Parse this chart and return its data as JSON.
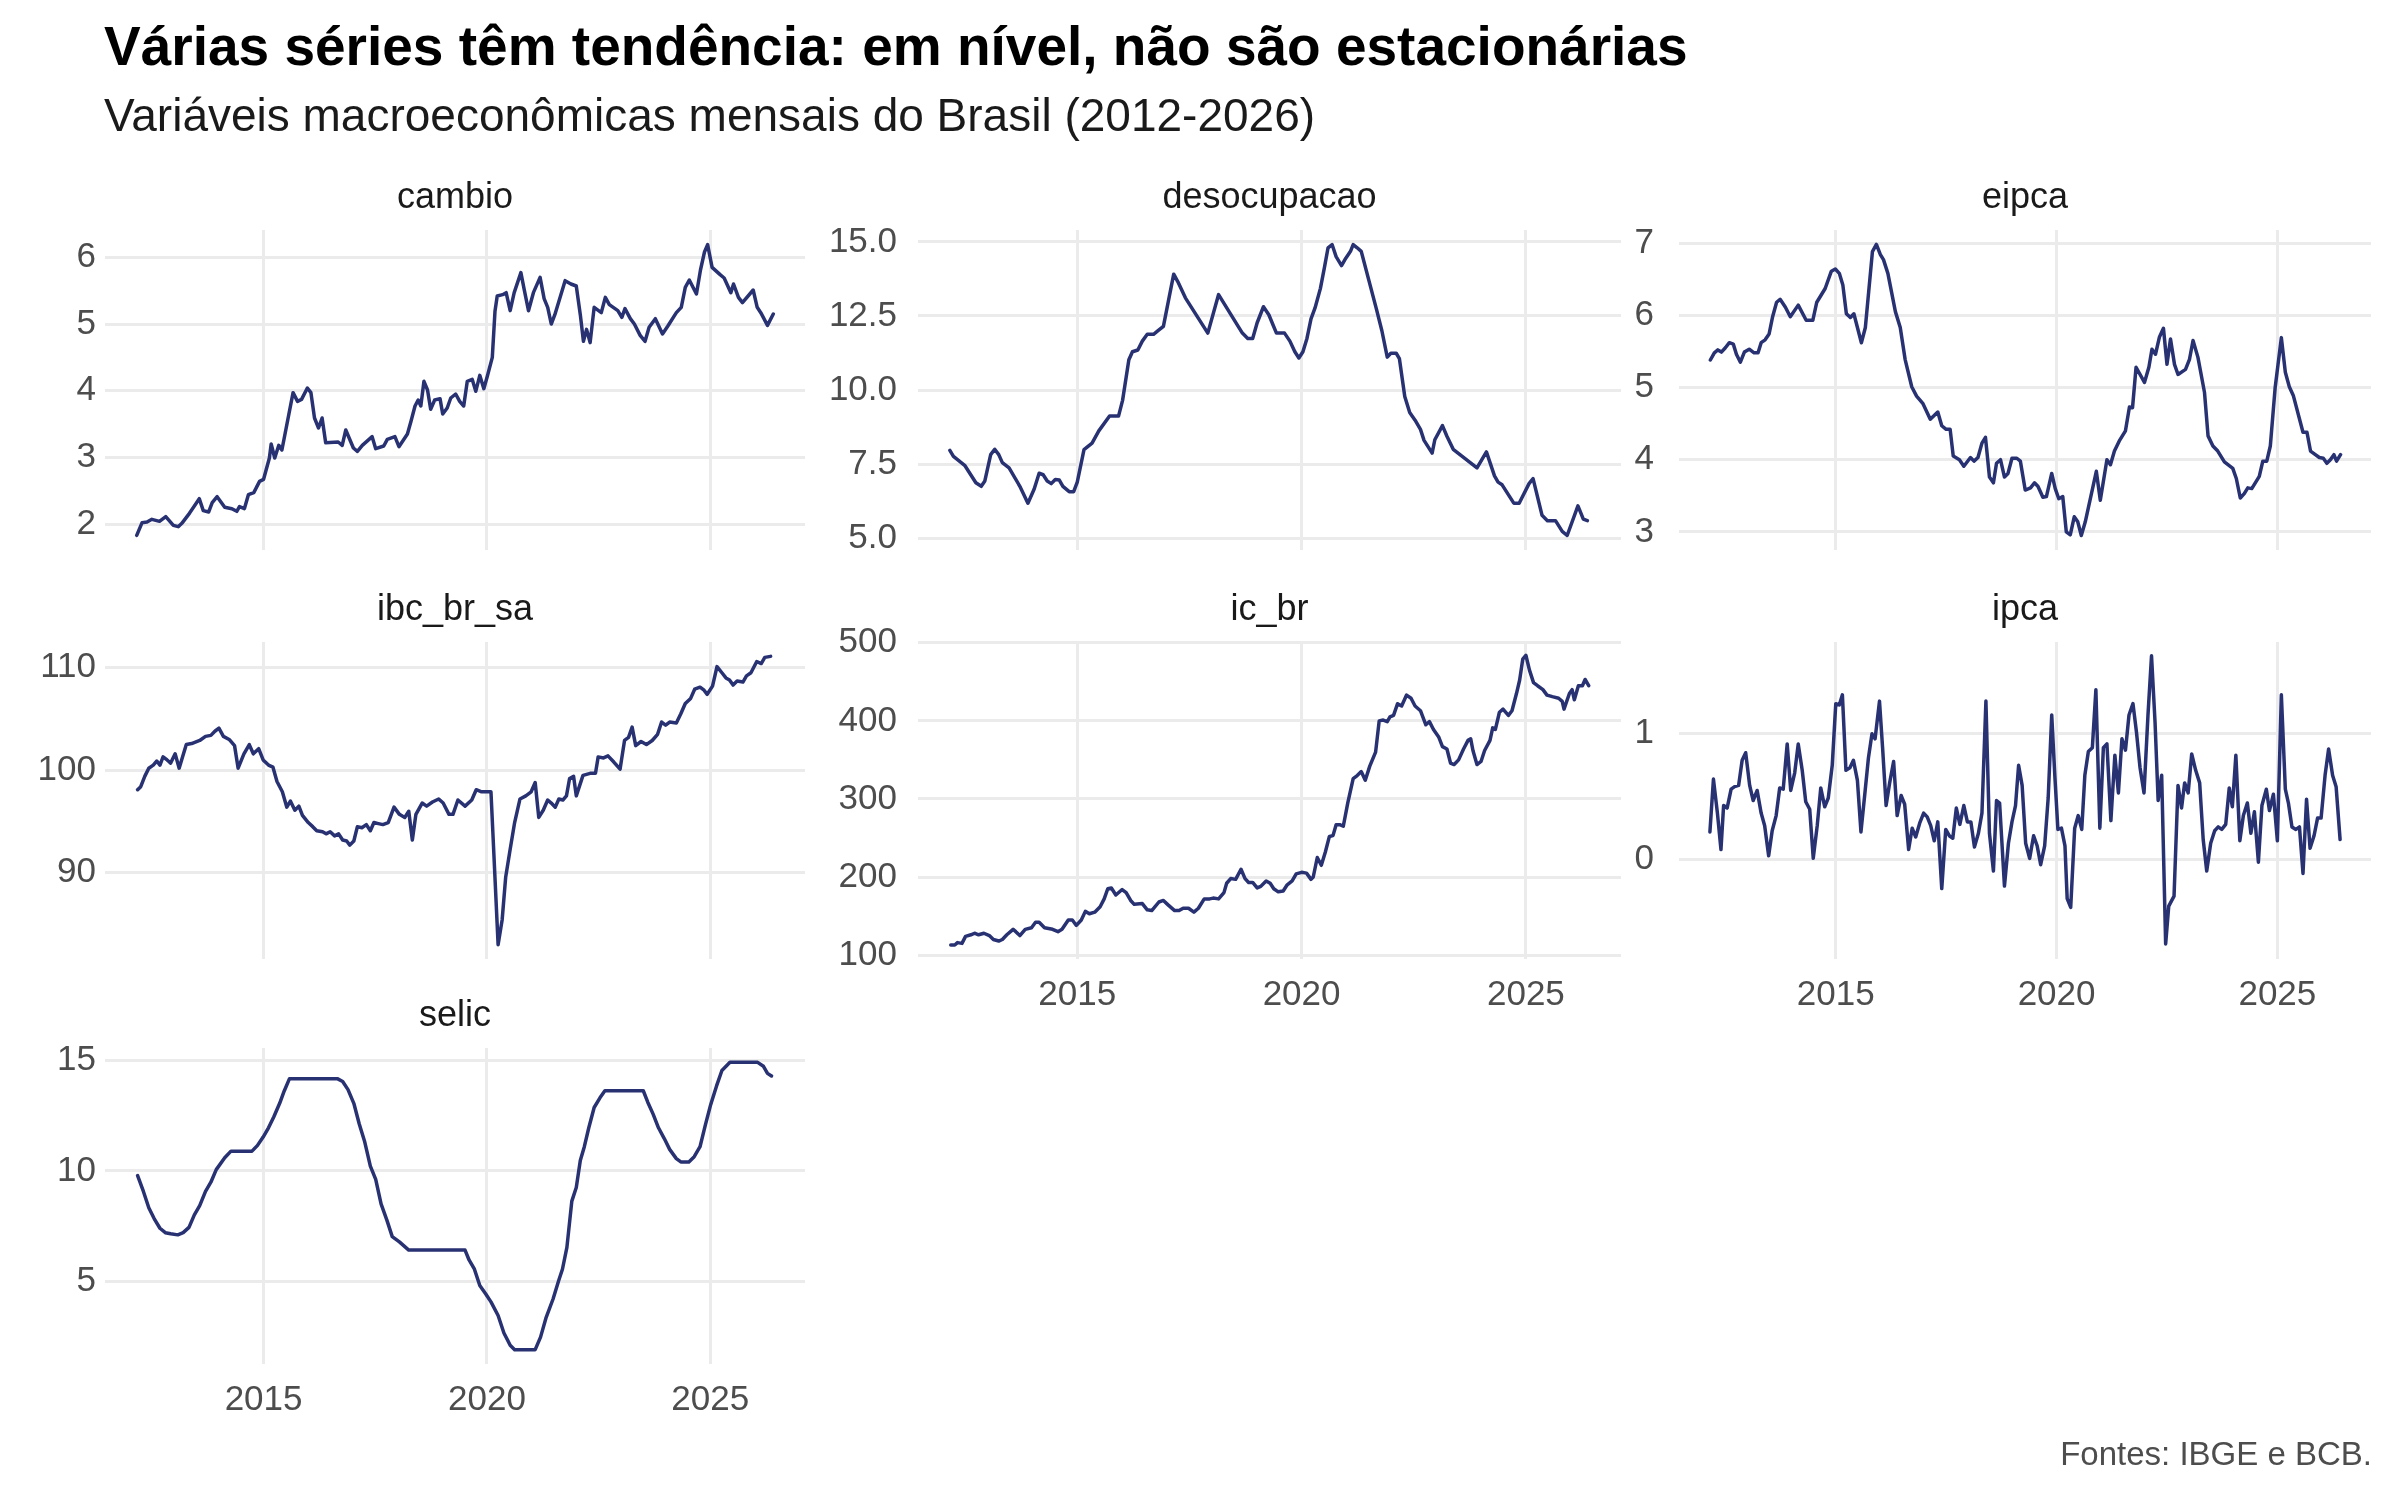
{
  "chart_data": [
    {
      "type": "other",
      "title": "Várias séries têm tendência: em nível, não são estacionárias",
      "subtitle": "Variáveis macroeconômicas mensais do Brasil (2012-2026)",
      "annotations": [
        "Fontes: IBGE e BCB."
      ]
    },
    {
      "type": "line",
      "title": "cambio",
      "color": "#283273",
      "grid": true,
      "tick_labels": "y",
      "xlim": [
        2011.45,
        2027.12
      ],
      "xticks": [
        2015,
        2020,
        2025
      ],
      "ylim": [
        1.61,
        6.41
      ],
      "yticks": [
        2,
        3,
        4,
        5,
        6
      ],
      "x": [
        2012.16,
        2012.28,
        2012.39,
        2012.5,
        2012.67,
        2012.81,
        2012.98,
        2013.09,
        2013.17,
        2013.34,
        2013.56,
        2013.65,
        2013.77,
        2013.85,
        2013.96,
        2014.13,
        2014.29,
        2014.4,
        2014.46,
        2014.57,
        2014.66,
        2014.78,
        2014.91,
        2015,
        2015.13,
        2015.17,
        2015.25,
        2015.34,
        2015.41,
        2015.66,
        2015.76,
        2015.85,
        2015.98,
        2016.06,
        2016.14,
        2016.23,
        2016.31,
        2016.39,
        2016.67,
        2016.76,
        2016.84,
        2017.01,
        2017.1,
        2017.21,
        2017.43,
        2017.51,
        2017.69,
        2017.77,
        2017.94,
        2018.03,
        2018.22,
        2018.3,
        2018.39,
        2018.46,
        2018.52,
        2018.59,
        2018.67,
        2018.74,
        2018.83,
        2018.95,
        2019.01,
        2019.11,
        2019.19,
        2019.3,
        2019.39,
        2019.48,
        2019.56,
        2019.67,
        2019.75,
        2019.84,
        2019.93,
        2020.01,
        2020.12,
        2020.18,
        2020.23,
        2020.35,
        2020.43,
        2020.52,
        2020.61,
        2020.76,
        2020.83,
        2020.93,
        2021.04,
        2021.19,
        2021.28,
        2021.36,
        2021.44,
        2021.52,
        2021.75,
        2021.88,
        2022,
        2022.09,
        2022.16,
        2022.23,
        2022.31,
        2022.4,
        2022.56,
        2022.65,
        2022.74,
        2022.93,
        2023.02,
        2023.09,
        2023.21,
        2023.3,
        2023.43,
        2023.54,
        2023.63,
        2023.77,
        2023.93,
        2024.05,
        2024.24,
        2024.35,
        2024.44,
        2024.53,
        2024.69,
        2024.78,
        2024.87,
        2024.94,
        2025.04,
        2025.22,
        2025.31,
        2025.46,
        2025.52,
        2025.63,
        2025.72,
        2025.96,
        2026.05,
        2026.13,
        2026.28,
        2026.41
      ],
      "values": [
        1.83,
        2.02,
        2.03,
        2.07,
        2.04,
        2.11,
        1.98,
        1.96,
        2.01,
        2.16,
        2.38,
        2.2,
        2.18,
        2.32,
        2.41,
        2.25,
        2.23,
        2.19,
        2.26,
        2.23,
        2.44,
        2.47,
        2.64,
        2.67,
        2.99,
        3.2,
        2.99,
        3.18,
        3.11,
        3.97,
        3.84,
        3.87,
        4.04,
        3.97,
        3.59,
        3.44,
        3.59,
        3.22,
        3.23,
        3.18,
        3.41,
        3.14,
        3.09,
        3.18,
        3.31,
        3.13,
        3.17,
        3.27,
        3.31,
        3.16,
        3.35,
        3.54,
        3.77,
        3.86,
        3.77,
        4.14,
        4.01,
        3.72,
        3.86,
        3.88,
        3.65,
        3.74,
        3.89,
        3.95,
        3.84,
        3.77,
        4.14,
        4.17,
        3.99,
        4.23,
        4.03,
        4.22,
        4.5,
        5.19,
        5.42,
        5.44,
        5.47,
        5.2,
        5.47,
        5.77,
        5.53,
        5.2,
        5.47,
        5.7,
        5.38,
        5.25,
        5,
        5.14,
        5.65,
        5.6,
        5.57,
        5.14,
        4.74,
        4.92,
        4.72,
        5.25,
        5.17,
        5.4,
        5.29,
        5.2,
        5.1,
        5.23,
        5.08,
        5,
        4.83,
        4.74,
        4.95,
        5.08,
        4.85,
        4.97,
        5.17,
        5.25,
        5.55,
        5.66,
        5.45,
        5.81,
        6.08,
        6.19,
        5.85,
        5.74,
        5.69,
        5.47,
        5.6,
        5.4,
        5.32,
        5.51,
        5.25,
        5.17,
        4.98,
        5.15
      ]
    },
    {
      "type": "line",
      "title": "desocupacao",
      "color": "#283273",
      "grid": true,
      "tick_labels": "y",
      "xlim": [
        2011.45,
        2027.12
      ],
      "xticks": [
        2015,
        2020,
        2025
      ],
      "ylim": [
        4.6,
        15.4
      ],
      "yticks": [
        {
          "value": 5,
          "label": "5.0"
        },
        7.5,
        {
          "value": 10,
          "label": "10.0"
        },
        12.5,
        {
          "value": 15,
          "label": "15.0"
        }
      ],
      "x": [
        2012.16,
        2012.24,
        2012.49,
        2012.74,
        2012.86,
        2012.94,
        2013.07,
        2013.16,
        2013.25,
        2013.33,
        2013.48,
        2013.72,
        2013.9,
        2014.04,
        2014.15,
        2014.24,
        2014.33,
        2014.42,
        2014.51,
        2014.6,
        2014.68,
        2014.82,
        2014.92,
        2015,
        2015.15,
        2015.33,
        2015.48,
        2015.72,
        2015.92,
        2016.01,
        2016.15,
        2016.23,
        2016.35,
        2016.45,
        2016.56,
        2016.7,
        2016.8,
        2016.92,
        2017.03,
        2017.15,
        2017.24,
        2017.41,
        2017.91,
        2018.15,
        2018.68,
        2018.8,
        2018.91,
        2019.01,
        2019.15,
        2019.27,
        2019.44,
        2019.62,
        2019.74,
        2019.85,
        2019.94,
        2020.03,
        2020.12,
        2020.21,
        2020.3,
        2020.42,
        2020.51,
        2020.59,
        2020.68,
        2020.77,
        2020.89,
        2020.97,
        2021.09,
        2021.15,
        2021.24,
        2021.33,
        2021.5,
        2021.67,
        2021.79,
        2021.91,
        2021.99,
        2022.11,
        2022.18,
        2022.3,
        2022.41,
        2022.53,
        2022.65,
        2022.73,
        2022.91,
        2022.97,
        2023.14,
        2023.24,
        2023.38,
        2023.91,
        2024.12,
        2024.3,
        2024.38,
        2024.47,
        2024.73,
        2024.85,
        2025.07,
        2025.16,
        2025.36,
        2025.48,
        2025.66,
        2025.81,
        2025.92,
        2026.16,
        2026.28,
        2026.37
      ],
      "values": [
        7.96,
        7.76,
        7.46,
        6.87,
        6.75,
        6.93,
        7.82,
        8,
        7.82,
        7.55,
        7.37,
        6.75,
        6.18,
        6.66,
        7.19,
        7.14,
        6.93,
        6.84,
        6.98,
        6.96,
        6.75,
        6.57,
        6.57,
        6.89,
        7.99,
        8.21,
        8.62,
        9.12,
        9.12,
        9.65,
        11.02,
        11.29,
        11.35,
        11.65,
        11.88,
        11.88,
        12,
        12.15,
        12.99,
        13.91,
        13.66,
        13.11,
        11.92,
        13.22,
        11.92,
        11.74,
        11.74,
        12.27,
        12.81,
        12.54,
        11.92,
        11.92,
        11.65,
        11.29,
        11.08,
        11.29,
        11.74,
        12.4,
        12.77,
        13.43,
        14.14,
        14.8,
        14.91,
        14.5,
        14.2,
        14.41,
        14.68,
        14.91,
        14.8,
        14.68,
        13.7,
        12.72,
        12,
        11.11,
        11.24,
        11.24,
        11.06,
        9.78,
        9.24,
        8.98,
        8.67,
        8.3,
        7.87,
        8.32,
        8.8,
        8.44,
        8,
        7.37,
        7.91,
        7.1,
        6.89,
        6.8,
        6.18,
        6.18,
        6.84,
        7.01,
        5.77,
        5.59,
        5.59,
        5.23,
        5.09,
        6.09,
        5.64,
        5.59
      ]
    },
    {
      "type": "line",
      "title": "eipca",
      "color": "#283273",
      "grid": true,
      "tick_labels": "y",
      "xlim": [
        2011.45,
        2027.12
      ],
      "xticks": [
        2015,
        2020,
        2025
      ],
      "ylim": [
        2.75,
        7.18
      ],
      "yticks": [
        3,
        4,
        5,
        6,
        7
      ],
      "x": [
        2012.16,
        2012.25,
        2012.33,
        2012.41,
        2012.5,
        2012.59,
        2012.68,
        2012.75,
        2012.84,
        2012.93,
        2013.04,
        2013.15,
        2013.24,
        2013.31,
        2013.4,
        2013.49,
        2013.57,
        2013.66,
        2013.74,
        2013.86,
        2013.97,
        2014.15,
        2014.33,
        2014.48,
        2014.57,
        2014.76,
        2014.9,
        2014.99,
        2015.08,
        2015.16,
        2015.24,
        2015.33,
        2015.41,
        2015.58,
        2015.67,
        2015.83,
        2015.92,
        2016.01,
        2016.08,
        2016.18,
        2016.35,
        2016.46,
        2016.57,
        2016.72,
        2016.83,
        2016.97,
        2017.14,
        2017.31,
        2017.4,
        2017.5,
        2017.59,
        2017.66,
        2017.8,
        2017.9,
        2018.05,
        2018.13,
        2018.22,
        2018.31,
        2018.39,
        2018.48,
        2018.57,
        2018.64,
        2018.73,
        2018.82,
        2018.9,
        2018.99,
        2019.1,
        2019.18,
        2019.29,
        2019.41,
        2019.5,
        2019.58,
        2019.69,
        2019.77,
        2019.89,
        2019.97,
        2020.05,
        2020.14,
        2020.22,
        2020.31,
        2020.4,
        2020.48,
        2020.56,
        2020.65,
        2020.9,
        2020.99,
        2021.14,
        2021.22,
        2021.31,
        2021.42,
        2021.56,
        2021.65,
        2021.72,
        2021.8,
        2021.99,
        2022.09,
        2022.16,
        2022.24,
        2022.33,
        2022.42,
        2022.5,
        2022.58,
        2022.67,
        2022.75,
        2022.92,
        2023.01,
        2023.09,
        2023.2,
        2023.35,
        2023.43,
        2023.54,
        2023.65,
        2023.8,
        2023.99,
        2024.07,
        2024.16,
        2024.25,
        2024.33,
        2024.42,
        2024.59,
        2024.67,
        2024.76,
        2024.84,
        2024.95,
        2025.09,
        2025.18,
        2025.27,
        2025.36,
        2025.58,
        2025.67,
        2025.75,
        2025.86,
        2025.95,
        2026.04,
        2026.12,
        2026.2,
        2026.28,
        2026.34,
        2026.43
      ],
      "values": [
        5.38,
        5.48,
        5.52,
        5.49,
        5.55,
        5.62,
        5.6,
        5.46,
        5.35,
        5.49,
        5.53,
        5.48,
        5.48,
        5.62,
        5.66,
        5.74,
        5.98,
        6.18,
        6.22,
        6.11,
        5.98,
        6.14,
        5.93,
        5.93,
        6.18,
        6.37,
        6.61,
        6.64,
        6.58,
        6.42,
        6.02,
        5.97,
        6.02,
        5.62,
        5.83,
        6.88,
        6.98,
        6.84,
        6.77,
        6.58,
        6.05,
        5.83,
        5.39,
        5.01,
        4.88,
        4.78,
        4.56,
        4.66,
        4.47,
        4.42,
        4.42,
        4.05,
        4,
        3.91,
        4.03,
        3.98,
        4.03,
        4.23,
        4.31,
        3.76,
        3.68,
        3.95,
        4,
        3.76,
        3.81,
        4.02,
        4.02,
        3.98,
        3.58,
        3.61,
        3.68,
        3.63,
        3.48,
        3.49,
        3.81,
        3.6,
        3.46,
        3.49,
        3,
        2.96,
        3.21,
        3.14,
        2.95,
        3.14,
        3.84,
        3.44,
        4,
        3.93,
        4.12,
        4.26,
        4.4,
        4.73,
        4.72,
        5.28,
        5.07,
        5.28,
        5.53,
        5.46,
        5.7,
        5.82,
        5.32,
        5.67,
        5.32,
        5.18,
        5.25,
        5.39,
        5.65,
        5.42,
        4.93,
        4.33,
        4.19,
        4.12,
        3.97,
        3.88,
        3.74,
        3.47,
        3.53,
        3.61,
        3.6,
        3.77,
        3.98,
        3.98,
        4.19,
        5,
        5.69,
        5.21,
        5.01,
        4.89,
        4.38,
        4.38,
        4.12,
        4.07,
        4.03,
        4.02,
        3.95,
        4,
        4.07,
        3.98,
        4.07
      ]
    },
    {
      "type": "line",
      "title": "ibc_br_sa",
      "color": "#283273",
      "grid": true,
      "tick_labels": "y",
      "xlim": [
        2011.45,
        2027.12
      ],
      "xticks": [
        2015,
        2020,
        2025
      ],
      "ylim": [
        81.6,
        112.5
      ],
      "yticks": [
        90,
        100,
        110
      ],
      "x": [
        2012.18,
        2012.25,
        2012.34,
        2012.43,
        2012.53,
        2012.61,
        2012.68,
        2012.75,
        2012.84,
        2012.92,
        2013.02,
        2013.11,
        2013.27,
        2013.39,
        2013.57,
        2013.7,
        2013.82,
        2013.91,
        2014,
        2014.1,
        2014.23,
        2014.35,
        2014.43,
        2014.56,
        2014.68,
        2014.77,
        2014.89,
        2014.99,
        2015.11,
        2015.21,
        2015.3,
        2015.42,
        2015.52,
        2015.6,
        2015.7,
        2015.79,
        2015.87,
        2016,
        2016.1,
        2016.19,
        2016.32,
        2016.4,
        2016.49,
        2016.59,
        2016.68,
        2016.77,
        2016.86,
        2016.93,
        2017.02,
        2017.1,
        2017.2,
        2017.3,
        2017.39,
        2017.47,
        2017.57,
        2017.67,
        2017.79,
        2017.92,
        2018.04,
        2018.16,
        2018.25,
        2018.33,
        2018.41,
        2018.55,
        2018.65,
        2018.78,
        2018.92,
        2019.02,
        2019.15,
        2019.24,
        2019.35,
        2019.51,
        2019.66,
        2019.76,
        2019.88,
        2020.01,
        2020.09,
        2020.25,
        2020.34,
        2020.42,
        2020.52,
        2020.62,
        2020.74,
        2020.87,
        2020.99,
        2021.08,
        2021.16,
        2021.26,
        2021.36,
        2021.44,
        2021.53,
        2021.61,
        2021.7,
        2021.78,
        2021.85,
        2021.94,
        2022,
        2022.15,
        2022.31,
        2022.43,
        2022.49,
        2022.61,
        2022.71,
        2022.84,
        2022.98,
        2023.08,
        2023.17,
        2023.25,
        2023.33,
        2023.45,
        2023.57,
        2023.7,
        2023.82,
        2023.91,
        2024,
        2024.09,
        2024.24,
        2024.34,
        2024.44,
        2024.56,
        2024.65,
        2024.77,
        2024.86,
        2024.93,
        2025.05,
        2025.15,
        2025.26,
        2025.35,
        2025.43,
        2025.51,
        2025.6,
        2025.73,
        2025.81,
        2025.91,
        2026.04,
        2026.14,
        2026.22,
        2026.35
      ],
      "values": [
        98.1,
        98.4,
        99.4,
        100.2,
        100.5,
        100.9,
        100.5,
        101.3,
        101,
        100.7,
        101.6,
        100.2,
        102.5,
        102.6,
        102.9,
        103.3,
        103.4,
        103.8,
        104.1,
        103.3,
        103,
        102.4,
        100.2,
        101.6,
        102.5,
        101.6,
        102.1,
        101,
        100.5,
        100.3,
        98.9,
        97.9,
        96.4,
        97,
        96.1,
        96.5,
        95.6,
        94.9,
        94.5,
        94.1,
        94,
        93.8,
        94,
        93.6,
        93.8,
        93.2,
        93.1,
        92.7,
        93.1,
        94.5,
        94.4,
        94.7,
        94.1,
        94.9,
        94.8,
        94.7,
        94.9,
        96.4,
        95.7,
        95.4,
        96,
        93.2,
        95.7,
        96.8,
        96.5,
        96.9,
        97.2,
        96.8,
        95.7,
        95.7,
        97.1,
        96.5,
        97.1,
        98.1,
        97.9,
        97.9,
        97.9,
        83,
        85.4,
        89.6,
        92.3,
        94.9,
        97.2,
        97.5,
        97.9,
        98.8,
        95.4,
        96.1,
        97.1,
        96.8,
        96.4,
        97.2,
        97.1,
        97.5,
        99.2,
        99.4,
        97.5,
        99.5,
        99.7,
        99.7,
        101.3,
        101.2,
        101.4,
        100.8,
        100.1,
        102.9,
        103.2,
        104.2,
        102.4,
        102.8,
        102.5,
        102.9,
        103.5,
        104.7,
        104.4,
        104.7,
        104.6,
        105.5,
        106.5,
        107,
        107.9,
        108.1,
        107.8,
        107.4,
        108.2,
        110.1,
        109.5,
        109,
        108.8,
        108.3,
        108.7,
        108.6,
        109.2,
        109.5,
        110.6,
        110.4,
        111,
        111.1
      ]
    },
    {
      "type": "line",
      "title": "ic_br",
      "color": "#283273",
      "grid": true,
      "xlim": [
        2011.45,
        2027.12
      ],
      "xticks": [
        2015,
        2020,
        2025
      ],
      "ylim": [
        95,
        501
      ],
      "yticks": [
        100,
        200,
        300,
        400,
        500
      ],
      "x": [
        2012.18,
        2012.27,
        2012.33,
        2012.43,
        2012.51,
        2012.63,
        2012.71,
        2012.8,
        2012.92,
        2013.04,
        2013.13,
        2013.25,
        2013.33,
        2013.43,
        2013.57,
        2013.63,
        2013.72,
        2013.84,
        2013.98,
        2014.07,
        2014.15,
        2014.27,
        2014.45,
        2014.57,
        2014.66,
        2014.8,
        2014.89,
        2014.98,
        2015.09,
        2015.18,
        2015.27,
        2015.39,
        2015.51,
        2015.6,
        2015.68,
        2015.76,
        2015.86,
        2016,
        2016.09,
        2016.19,
        2016.27,
        2016.45,
        2016.56,
        2016.66,
        2016.82,
        2016.92,
        2017.03,
        2017.17,
        2017.27,
        2017.36,
        2017.48,
        2017.6,
        2017.7,
        2017.83,
        2017.95,
        2018.03,
        2018.15,
        2018.27,
        2018.33,
        2018.42,
        2018.53,
        2018.65,
        2018.74,
        2018.82,
        2018.91,
        2019.01,
        2019.09,
        2019.21,
        2019.3,
        2019.38,
        2019.48,
        2019.59,
        2019.68,
        2019.79,
        2019.88,
        2020,
        2020.11,
        2020.21,
        2020.26,
        2020.35,
        2020.44,
        2020.53,
        2020.62,
        2020.7,
        2020.77,
        2020.85,
        2020.93,
        2021.03,
        2021.15,
        2021.24,
        2021.33,
        2021.42,
        2021.52,
        2021.65,
        2021.73,
        2021.82,
        2021.91,
        2021.97,
        2022.05,
        2022.14,
        2022.23,
        2022.34,
        2022.44,
        2022.53,
        2022.65,
        2022.77,
        2022.85,
        2022.94,
        2023.06,
        2023.14,
        2023.24,
        2023.32,
        2023.4,
        2023.5,
        2023.61,
        2023.71,
        2023.77,
        2023.82,
        2023.91,
        2024,
        2024.08,
        2024.2,
        2024.26,
        2024.32,
        2024.41,
        2024.49,
        2024.61,
        2024.69,
        2024.79,
        2024.86,
        2024.93,
        2025,
        2025.08,
        2025.17,
        2025.26,
        2025.38,
        2025.47,
        2025.59,
        2025.73,
        2025.81,
        2025.85,
        2025.97,
        2026.03,
        2026.08,
        2026.17,
        2026.26,
        2026.32,
        2026.4
      ],
      "values": [
        113,
        113,
        116,
        115,
        124,
        126,
        128,
        126,
        128,
        125,
        120,
        118,
        120,
        126,
        133,
        130,
        125,
        133,
        135,
        142,
        142,
        135,
        133,
        130,
        133,
        145,
        145,
        138,
        145,
        156,
        153,
        155,
        162,
        172,
        185,
        186,
        177,
        184,
        180,
        170,
        165,
        166,
        158,
        157,
        168,
        170,
        164,
        157,
        157,
        160,
        160,
        155,
        160,
        172,
        172,
        173,
        172,
        180,
        192,
        198,
        197,
        210,
        198,
        193,
        193,
        186,
        188,
        195,
        192,
        185,
        181,
        182,
        190,
        195,
        204,
        206,
        205,
        197,
        200,
        225,
        215,
        232,
        252,
        253,
        267,
        267,
        265,
        295,
        326,
        330,
        335,
        324,
        342,
        360,
        400,
        401,
        399,
        405,
        407,
        422,
        419,
        433,
        429,
        419,
        413,
        395,
        399,
        389,
        379,
        367,
        364,
        346,
        344,
        350,
        364,
        375,
        377,
        362,
        344,
        348,
        362,
        375,
        391,
        389,
        411,
        415,
        407,
        413,
        435,
        452,
        479,
        484,
        465,
        449,
        445,
        440,
        433,
        431,
        429,
        425,
        415,
        435,
        440,
        427,
        445,
        445,
        453,
        445
      ]
    },
    {
      "type": "line",
      "title": "ipca",
      "color": "#283273",
      "grid": true,
      "xlim": [
        2011.45,
        2027.12
      ],
      "xticks": [
        2015,
        2020,
        2025
      ],
      "ylim": [
        -0.79,
        1.73
      ],
      "yticks": [
        0,
        1
      ],
      "x": [
        2012.15,
        2012.23,
        2012.32,
        2012.4,
        2012.46,
        2012.54,
        2012.63,
        2012.71,
        2012.8,
        2012.88,
        2012.96,
        2013.05,
        2013.13,
        2013.22,
        2013.31,
        2013.39,
        2013.48,
        2013.56,
        2013.65,
        2013.73,
        2013.81,
        2013.9,
        2013.98,
        2014.07,
        2014.15,
        2014.24,
        2014.32,
        2014.41,
        2014.49,
        2014.58,
        2014.66,
        2014.75,
        2014.83,
        2014.92,
        2015,
        2015.08,
        2015.15,
        2015.23,
        2015.32,
        2015.4,
        2015.49,
        2015.57,
        2015.66,
        2015.74,
        2015.82,
        2015.89,
        2015.99,
        2016.06,
        2016.14,
        2016.22,
        2016.31,
        2016.39,
        2016.48,
        2016.56,
        2016.65,
        2016.73,
        2016.81,
        2016.9,
        2016.99,
        2017.07,
        2017.15,
        2017.23,
        2017.31,
        2017.4,
        2017.49,
        2017.57,
        2017.65,
        2017.73,
        2017.81,
        2017.9,
        2017.98,
        2018.06,
        2018.14,
        2018.23,
        2018.31,
        2018.4,
        2018.48,
        2018.57,
        2018.64,
        2018.71,
        2018.82,
        2018.91,
        2018.99,
        2019.07,
        2019.14,
        2019.22,
        2019.3,
        2019.39,
        2019.48,
        2019.56,
        2019.64,
        2019.73,
        2019.81,
        2019.89,
        2019.96,
        2020.03,
        2020.11,
        2020.19,
        2020.24,
        2020.32,
        2020.41,
        2020.49,
        2020.57,
        2020.64,
        2020.72,
        2020.81,
        2020.89,
        2020.98,
        2021.06,
        2021.14,
        2021.23,
        2021.32,
        2021.4,
        2021.48,
        2021.56,
        2021.64,
        2021.73,
        2021.81,
        2021.89,
        2021.98,
        2022.07,
        2022.15,
        2022.23,
        2022.3,
        2022.38,
        2022.47,
        2022.54,
        2022.66,
        2022.75,
        2022.83,
        2022.9,
        2022.98,
        2023.06,
        2023.15,
        2023.24,
        2023.32,
        2023.4,
        2023.49,
        2023.58,
        2023.66,
        2023.74,
        2023.83,
        2023.91,
        2023.98,
        2024.06,
        2024.15,
        2024.23,
        2024.32,
        2024.4,
        2024.48,
        2024.57,
        2024.65,
        2024.75,
        2024.82,
        2024.91,
        2025,
        2025.09,
        2025.18,
        2025.25,
        2025.33,
        2025.42,
        2025.5,
        2025.58,
        2025.66,
        2025.74,
        2025.83,
        2025.91,
        2025.99,
        2026.08,
        2026.16,
        2026.25,
        2026.33,
        2026.42
      ],
      "values": [
        0.22,
        0.64,
        0.37,
        0.08,
        0.43,
        0.41,
        0.56,
        0.58,
        0.59,
        0.79,
        0.85,
        0.59,
        0.47,
        0.55,
        0.37,
        0.27,
        0.03,
        0.23,
        0.35,
        0.57,
        0.56,
        0.92,
        0.55,
        0.69,
        0.92,
        0.71,
        0.46,
        0.4,
        0.01,
        0.27,
        0.57,
        0.42,
        0.49,
        0.75,
        1.24,
        1.23,
        1.31,
        0.71,
        0.73,
        0.79,
        0.63,
        0.22,
        0.53,
        0.81,
        1,
        0.96,
        1.26,
        0.89,
        0.43,
        0.61,
        0.78,
        0.35,
        0.51,
        0.44,
        0.08,
        0.25,
        0.18,
        0.29,
        0.37,
        0.34,
        0.27,
        0.15,
        0.3,
        -0.23,
        0.24,
        0.19,
        0.17,
        0.41,
        0.28,
        0.43,
        0.3,
        0.3,
        0.1,
        0.21,
        0.37,
        1.26,
        0.21,
        -0.09,
        0.47,
        0.45,
        -0.21,
        0.13,
        0.3,
        0.43,
        0.75,
        0.59,
        0.13,
        0.01,
        0.19,
        0.11,
        -0.04,
        0.11,
        0.49,
        1.15,
        0.67,
        0.24,
        0.25,
        0.11,
        -0.31,
        -0.38,
        0.25,
        0.35,
        0.24,
        0.67,
        0.86,
        0.89,
        1.35,
        0.25,
        0.89,
        0.92,
        0.31,
        0.83,
        0.53,
        0.96,
        0.87,
        1.15,
        1.24,
        1.01,
        0.73,
        0.53,
        1.15,
        1.62,
        1.09,
        0.47,
        0.67,
        -0.67,
        -0.37,
        -0.29,
        0.59,
        0.41,
        0.61,
        0.53,
        0.84,
        0.71,
        0.61,
        0.16,
        -0.09,
        0.13,
        0.23,
        0.26,
        0.24,
        0.28,
        0.57,
        0.42,
        0.83,
        0.15,
        0.35,
        0.45,
        0.21,
        0.38,
        -0.02,
        0.43,
        0.56,
        0.39,
        0.52,
        0.15,
        1.31,
        0.56,
        0.45,
        0.26,
        0.24,
        0.26,
        -0.11,
        0.48,
        0.09,
        0.19,
        0.33,
        0.33,
        0.67,
        0.88,
        0.67,
        0.58,
        0.16
      ]
    },
    {
      "type": "line",
      "title": "selic",
      "color": "#283273",
      "grid": true,
      "xlim": [
        2011.45,
        2027.12
      ],
      "xticks": [
        2015,
        2020,
        2025
      ],
      "ylim": [
        1.24,
        15.58
      ],
      "yticks": [
        5,
        10,
        15
      ],
      "x": [
        2012.18,
        2012.31,
        2012.43,
        2012.55,
        2012.68,
        2012.8,
        2012.92,
        2013.08,
        2013.2,
        2013.33,
        2013.45,
        2013.57,
        2013.7,
        2013.82,
        2013.94,
        2014.13,
        2014.27,
        2014.74,
        2014.86,
        2014.99,
        2015.11,
        2015.23,
        2015.36,
        2015.46,
        2015.58,
        2016.65,
        2016.77,
        2016.89,
        2017.02,
        2017.14,
        2017.26,
        2017.39,
        2017.51,
        2017.63,
        2017.76,
        2017.88,
        2018.04,
        2018.25,
        2019.51,
        2019.6,
        2019.72,
        2019.84,
        2019.97,
        2020.09,
        2020.25,
        2020.38,
        2020.52,
        2020.62,
        2021.08,
        2021.2,
        2021.32,
        2021.48,
        2021.61,
        2021.69,
        2021.79,
        2021.9,
        2022,
        2022.09,
        2022.18,
        2022.28,
        2022.4,
        2022.53,
        2022.64,
        2023.5,
        2023.6,
        2023.72,
        2023.84,
        2023.97,
        2024.09,
        2024.24,
        2024.34,
        2024.52,
        2024.64,
        2024.77,
        2024.89,
        2025.01,
        2025.14,
        2025.26,
        2025.44,
        2026.06,
        2026.19,
        2026.28,
        2026.37
      ],
      "values": [
        9.79,
        9.07,
        8.33,
        7.84,
        7.4,
        7.2,
        7.15,
        7.1,
        7.2,
        7.44,
        8.01,
        8.43,
        9.07,
        9.49,
        10.06,
        10.6,
        10.9,
        10.9,
        11.15,
        11.54,
        11.96,
        12.46,
        13.07,
        13.62,
        14.19,
        14.19,
        14.06,
        13.69,
        13.07,
        12.14,
        11.35,
        10.22,
        9.62,
        8.51,
        7.77,
        7.02,
        6.78,
        6.41,
        6.41,
        5.96,
        5.54,
        4.8,
        4.43,
        4.06,
        3.44,
        2.65,
        2.09,
        1.89,
        1.89,
        2.46,
        3.32,
        4.19,
        5.05,
        5.54,
        6.53,
        8.63,
        9.25,
        10.47,
        11.1,
        11.96,
        12.88,
        13.32,
        13.64,
        13.64,
        13.12,
        12.58,
        11.96,
        11.47,
        10.98,
        10.56,
        10.41,
        10.41,
        10.65,
        11.1,
        12.09,
        13.02,
        13.86,
        14.56,
        14.93,
        14.93,
        14.75,
        14.43,
        14.31
      ]
    }
  ]
}
